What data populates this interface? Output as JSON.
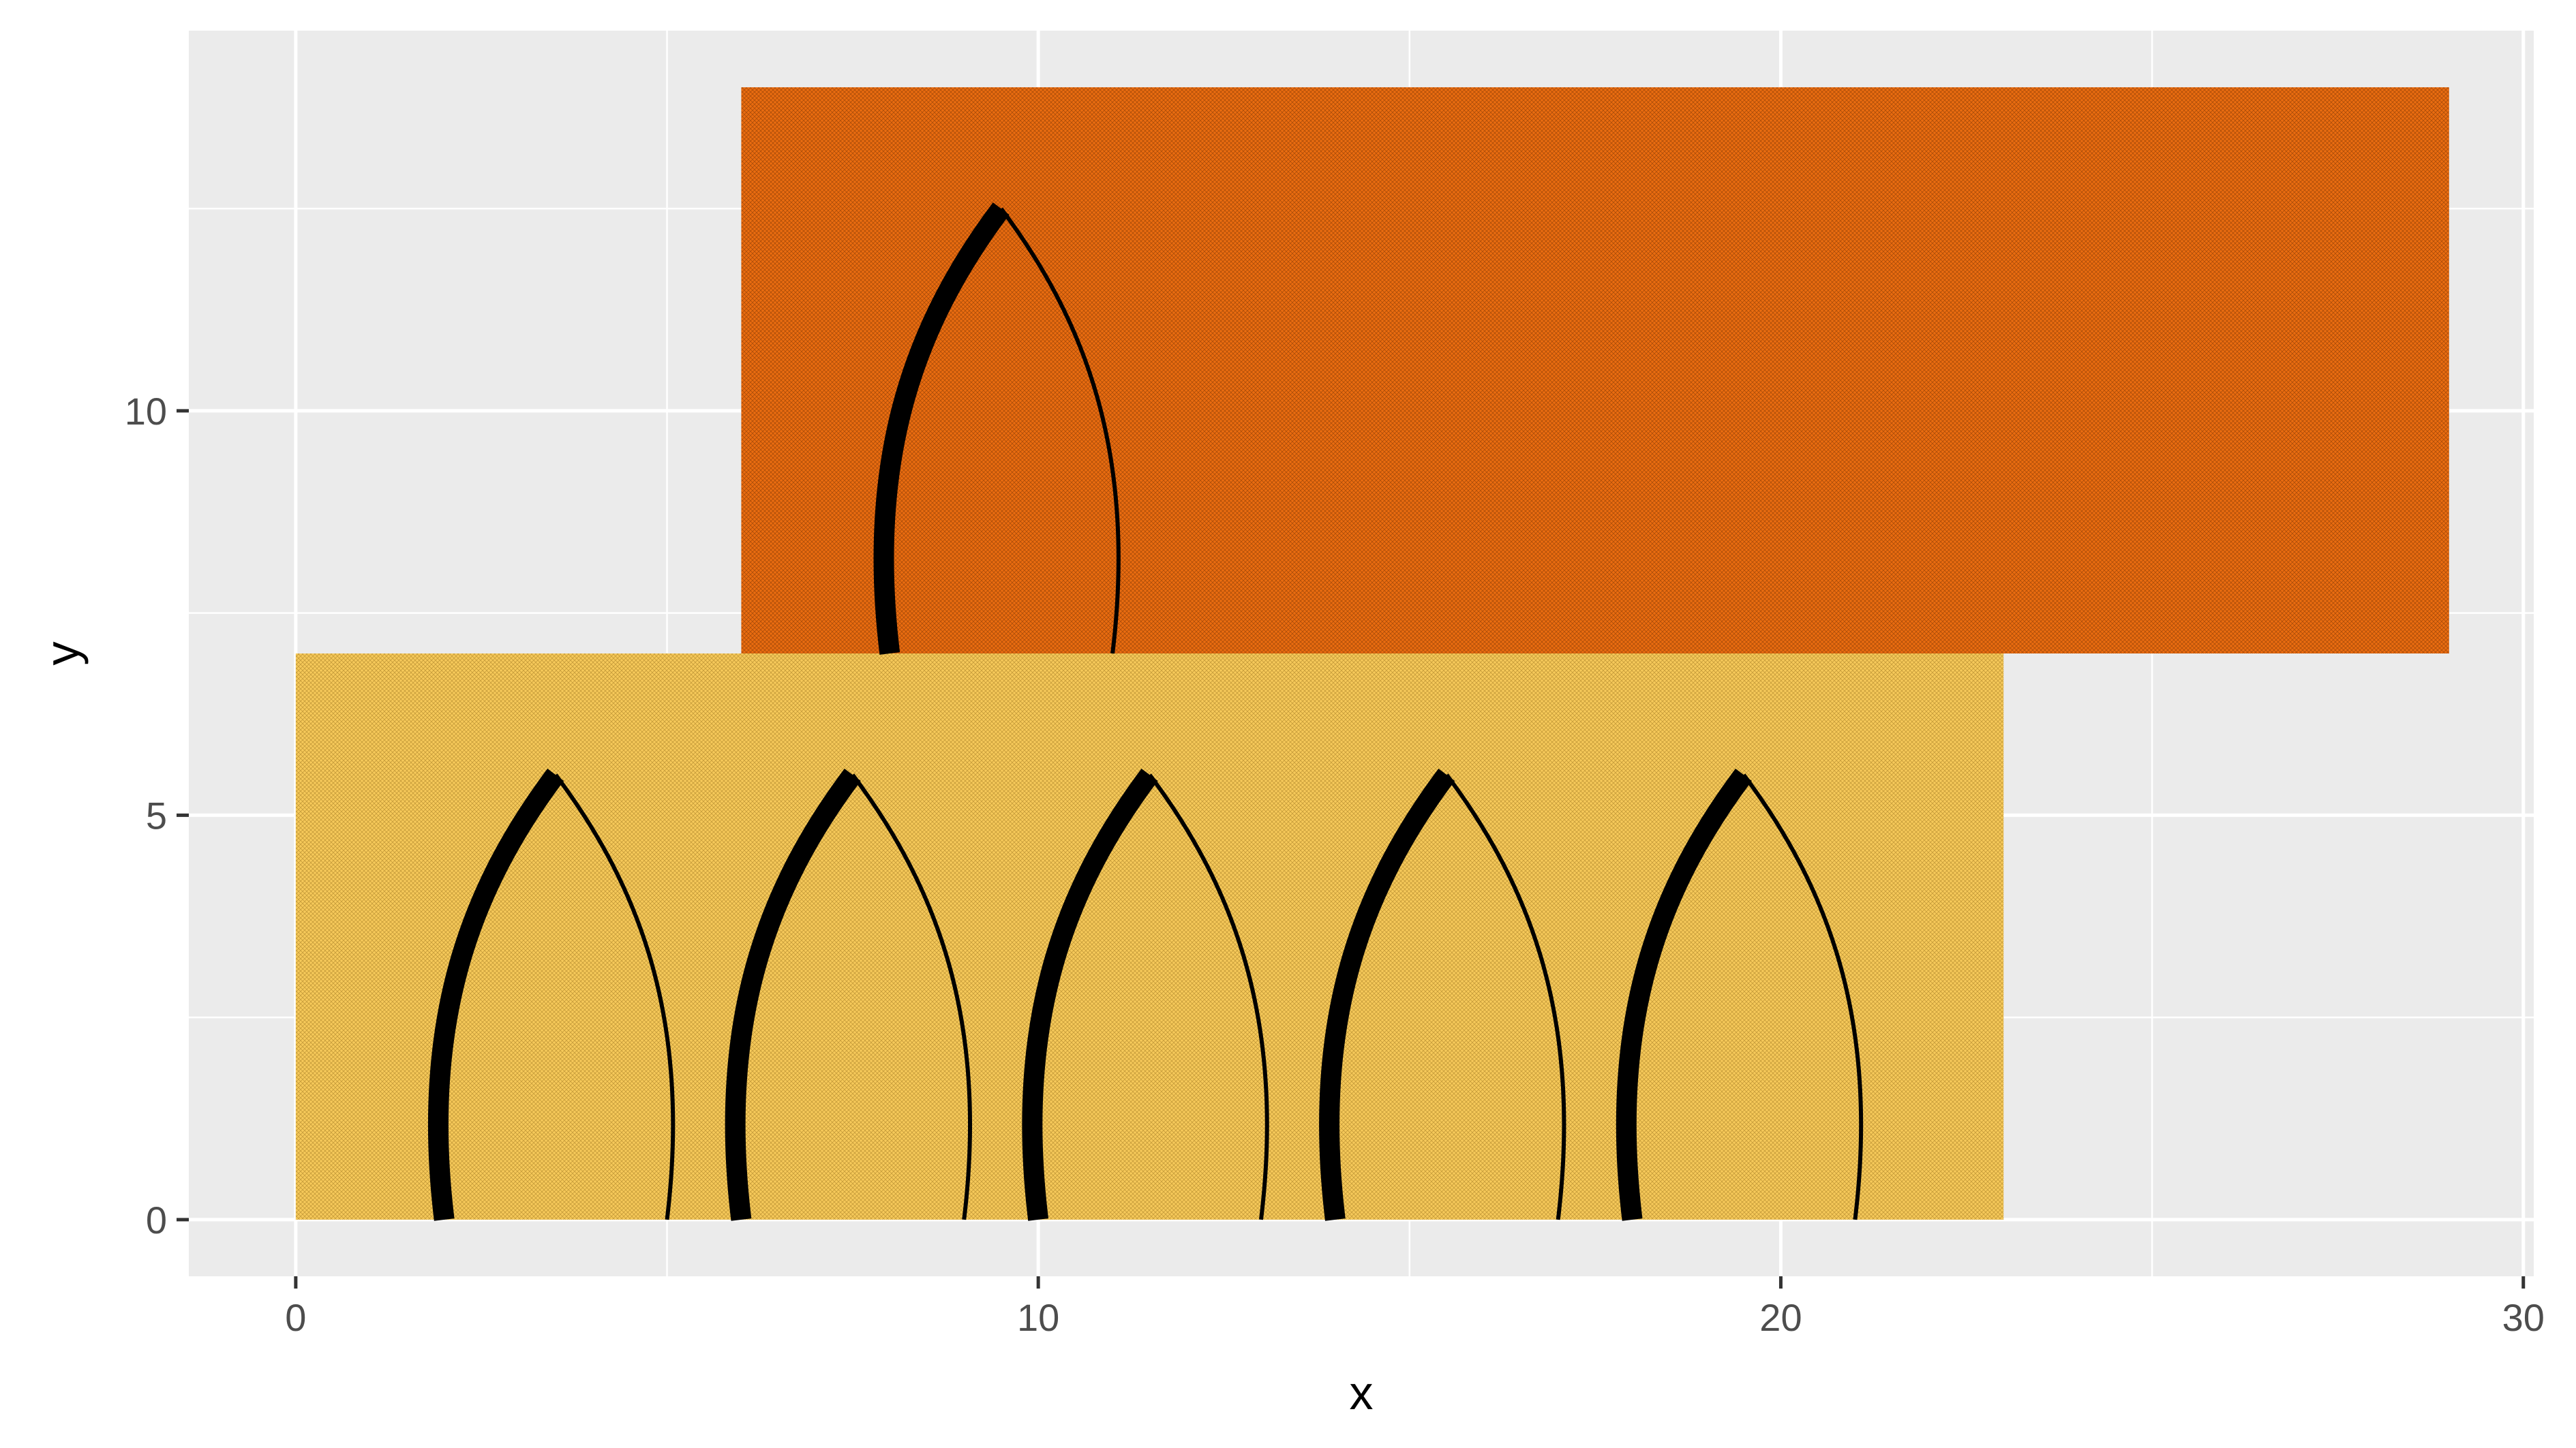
{
  "chart_data": {
    "type": "custom",
    "title": "",
    "xlabel": "x",
    "ylabel": "y",
    "xlim": [
      -1.44,
      30.14
    ],
    "ylim": [
      -0.7,
      14.7
    ],
    "x_ticks": [
      0,
      10,
      20,
      30
    ],
    "y_ticks": [
      0,
      5,
      10
    ],
    "grid": true,
    "panel_background": "#ebebeb",
    "grid_color": "#ffffff",
    "rectangles": [
      {
        "xmin": 0,
        "xmax": 23,
        "ymin": 0,
        "ymax": 7,
        "fill": "#f2bf4b",
        "pattern": "crosshatch-fine"
      },
      {
        "xmin": 6,
        "xmax": 29,
        "ymin": 7,
        "ymax": 14,
        "fill": "#e8690c",
        "pattern": "crosshatch-fine"
      }
    ],
    "curves": [
      {
        "start": [
          2,
          0
        ],
        "apex": [
          3.5,
          5.5
        ],
        "end": [
          5,
          0
        ]
      },
      {
        "start": [
          6,
          0
        ],
        "apex": [
          7.5,
          5.5
        ],
        "end": [
          9,
          0
        ]
      },
      {
        "start": [
          10,
          0
        ],
        "apex": [
          11.5,
          5.5
        ],
        "end": [
          13,
          0
        ]
      },
      {
        "start": [
          14,
          0
        ],
        "apex": [
          15.5,
          5.5
        ],
        "end": [
          17,
          0
        ]
      },
      {
        "start": [
          18,
          0
        ],
        "apex": [
          19.5,
          5.5
        ],
        "end": [
          21,
          0
        ]
      },
      {
        "start": [
          8,
          7
        ],
        "apex": [
          9.5,
          12.5
        ],
        "end": [
          11,
          7
        ]
      }
    ]
  }
}
